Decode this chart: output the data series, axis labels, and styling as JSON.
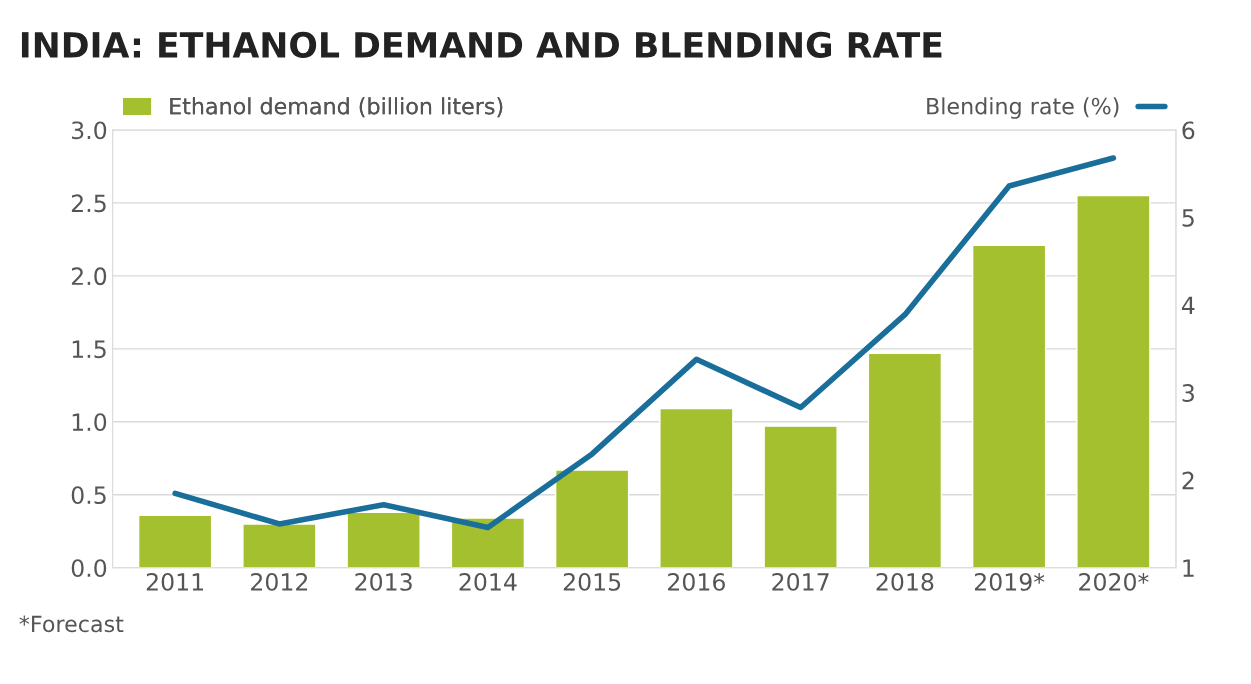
{
  "chart_data": {
    "type": "bar",
    "title": "INDIA: ETHANOL DEMAND AND BLENDING RATE",
    "categories": [
      "2011",
      "2012",
      "2013",
      "2014",
      "2015",
      "2016",
      "2017",
      "2018",
      "2019*",
      "2020*"
    ],
    "series": [
      {
        "name": "Ethanol demand (billion liters)",
        "color": "#a4c02e",
        "values": [
          0.36,
          0.3,
          0.38,
          0.34,
          0.67,
          1.09,
          0.97,
          1.47,
          2.21,
          2.55
        ]
      },
      {
        "name": "Blending rate (%)",
        "type": "line",
        "axis": "y2",
        "color": "#1a6e9a",
        "values": [
          1.85,
          1.5,
          1.72,
          1.46,
          2.3,
          3.38,
          2.83,
          3.89,
          5.36,
          5.68
        ]
      }
    ],
    "ylim": [
      0,
      3.0
    ],
    "yticks": [
      {
        "value": 0,
        "label": "0.0"
      },
      0.5,
      {
        "value": 1,
        "label": "1.0"
      },
      1.5,
      {
        "value": 2,
        "label": "2.0"
      },
      2.5,
      {
        "value": 3,
        "label": "3.0"
      }
    ],
    "y2lim": [
      1,
      6
    ],
    "y2ticks": [
      1,
      2,
      3,
      4,
      5,
      6
    ],
    "grid": "y",
    "legend": "top",
    "annotations": [
      "*Forecast"
    ]
  }
}
